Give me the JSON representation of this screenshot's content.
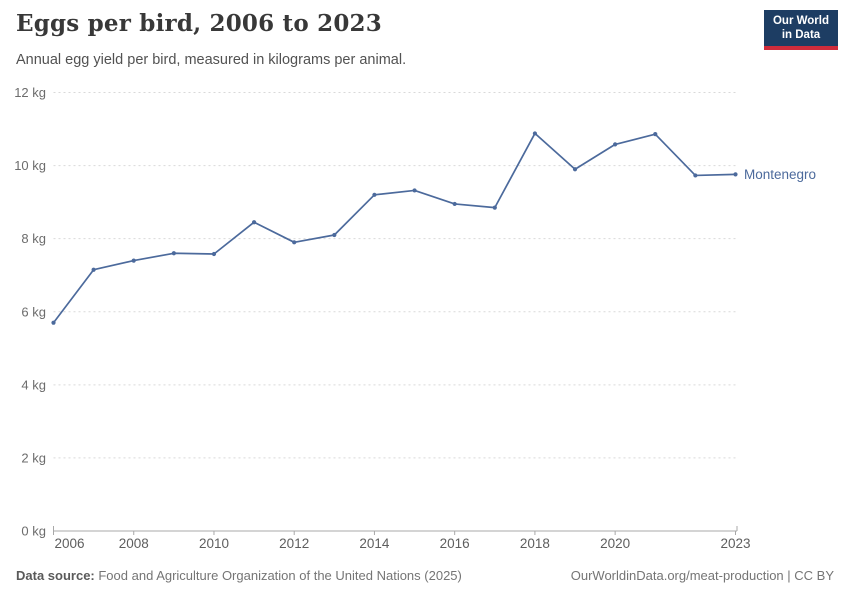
{
  "header": {
    "title": "Eggs per bird, 2006 to 2023",
    "subtitle": "Annual egg yield per bird, measured in kilograms per animal."
  },
  "logo": {
    "line1": "Our World",
    "line2": "in Data",
    "bg_color": "#1d3d63",
    "bar_color": "#cf2c3b"
  },
  "chart_data": {
    "type": "line",
    "title": "Eggs per bird, 2006 to 2023",
    "ylabel": "",
    "xlabel": "",
    "unit": "kg",
    "ylim": [
      0,
      12
    ],
    "yticks": [
      0,
      2,
      4,
      6,
      8,
      10,
      12
    ],
    "ytick_format": "{v} kg",
    "xticks": [
      2006,
      2008,
      2010,
      2012,
      2014,
      2016,
      2018,
      2020,
      2023
    ],
    "grid": true,
    "grid_style": "dashed",
    "legend_position": "end-of-line",
    "x": [
      2006,
      2007,
      2008,
      2009,
      2010,
      2011,
      2012,
      2013,
      2014,
      2015,
      2016,
      2017,
      2018,
      2019,
      2020,
      2021,
      2022,
      2023
    ],
    "series": [
      {
        "name": "Montenegro",
        "color": "#4C6A9C",
        "values": [
          5.7,
          7.15,
          7.4,
          7.6,
          7.58,
          8.45,
          7.9,
          8.1,
          9.2,
          9.32,
          8.95,
          8.85,
          10.88,
          9.9,
          10.58,
          10.86,
          9.73,
          9.76
        ]
      }
    ]
  },
  "footer": {
    "source_label": "Data source:",
    "source_rest": " Food and Agriculture Organization of the United Nations (2025)",
    "attribution": "OurWorldinData.org/meat-production | CC BY"
  },
  "colors": {
    "line": "#4C6A9C",
    "gridline": "#d9d9d9",
    "axis": "#a8a8a8",
    "ytick_label": "#6c6c6c",
    "xtick_label": "#5e5e5e"
  }
}
